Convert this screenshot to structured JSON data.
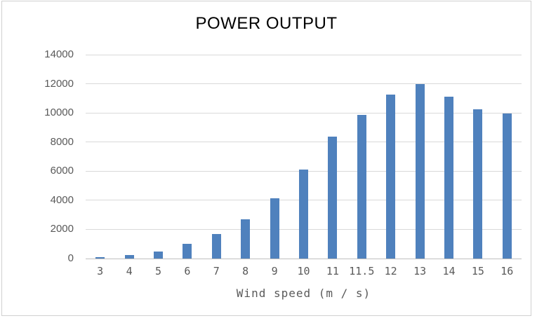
{
  "chart_data": {
    "type": "bar",
    "title": "POWER OUTPUT",
    "categories": [
      "3",
      "4",
      "5",
      "6",
      "7",
      "8",
      "9",
      "10",
      "11",
      "11.5",
      "12",
      "13",
      "14",
      "15",
      "16"
    ],
    "values": [
      100,
      250,
      500,
      1000,
      1700,
      2700,
      4150,
      6100,
      8350,
      9850,
      11250,
      12000,
      11100,
      10250,
      9950
    ],
    "xlabel": "Wind speed (m / s)",
    "ylabel": "",
    "ylim": [
      0,
      14000
    ],
    "y_ticks": [
      0,
      2000,
      4000,
      6000,
      8000,
      10000,
      12000,
      14000
    ],
    "grid": true,
    "legend": false,
    "colors": {
      "bar": "#4f81bd",
      "gridline": "#d9d9d9",
      "axis_line": "#bfbfbf",
      "tick_label": "#595959",
      "title": "#000000",
      "frame_border": "#d0d0d0",
      "background": "#ffffff"
    }
  }
}
